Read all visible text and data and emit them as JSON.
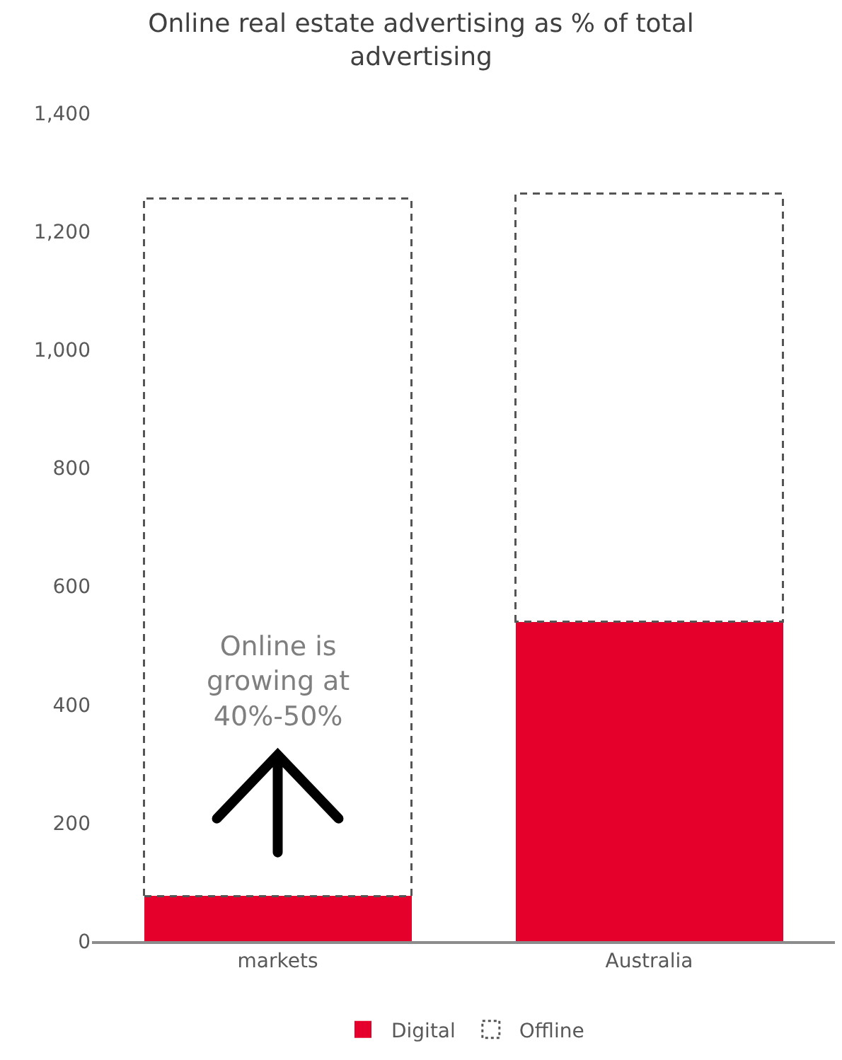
{
  "chart_data": {
    "type": "bar",
    "title": "Online real estate advertising as % of total advertising",
    "categories": [
      "markets",
      "Australia"
    ],
    "stacked": true,
    "ylim": [
      0,
      1400
    ],
    "yticks": [
      {
        "value": 0,
        "label": "0"
      },
      {
        "value": 200,
        "label": "200"
      },
      {
        "value": 400,
        "label": "400"
      },
      {
        "value": 600,
        "label": "600"
      },
      {
        "value": 800,
        "label": "800"
      },
      {
        "value": 1000,
        "label": "1,000"
      },
      {
        "value": 1200,
        "label": "1,200"
      },
      {
        "value": 1400,
        "label": "1,400"
      }
    ],
    "grid": false,
    "legend": "bottom",
    "annotations": [
      "Online is growing at 40%-50%"
    ],
    "series": [
      {
        "name": "Digital",
        "color": "#e4002b",
        "values": [
          76,
          540
        ]
      },
      {
        "name": "Offline",
        "color": "#ffffff",
        "line_style": "dashed",
        "values": [
          1180,
          724
        ]
      }
    ]
  }
}
